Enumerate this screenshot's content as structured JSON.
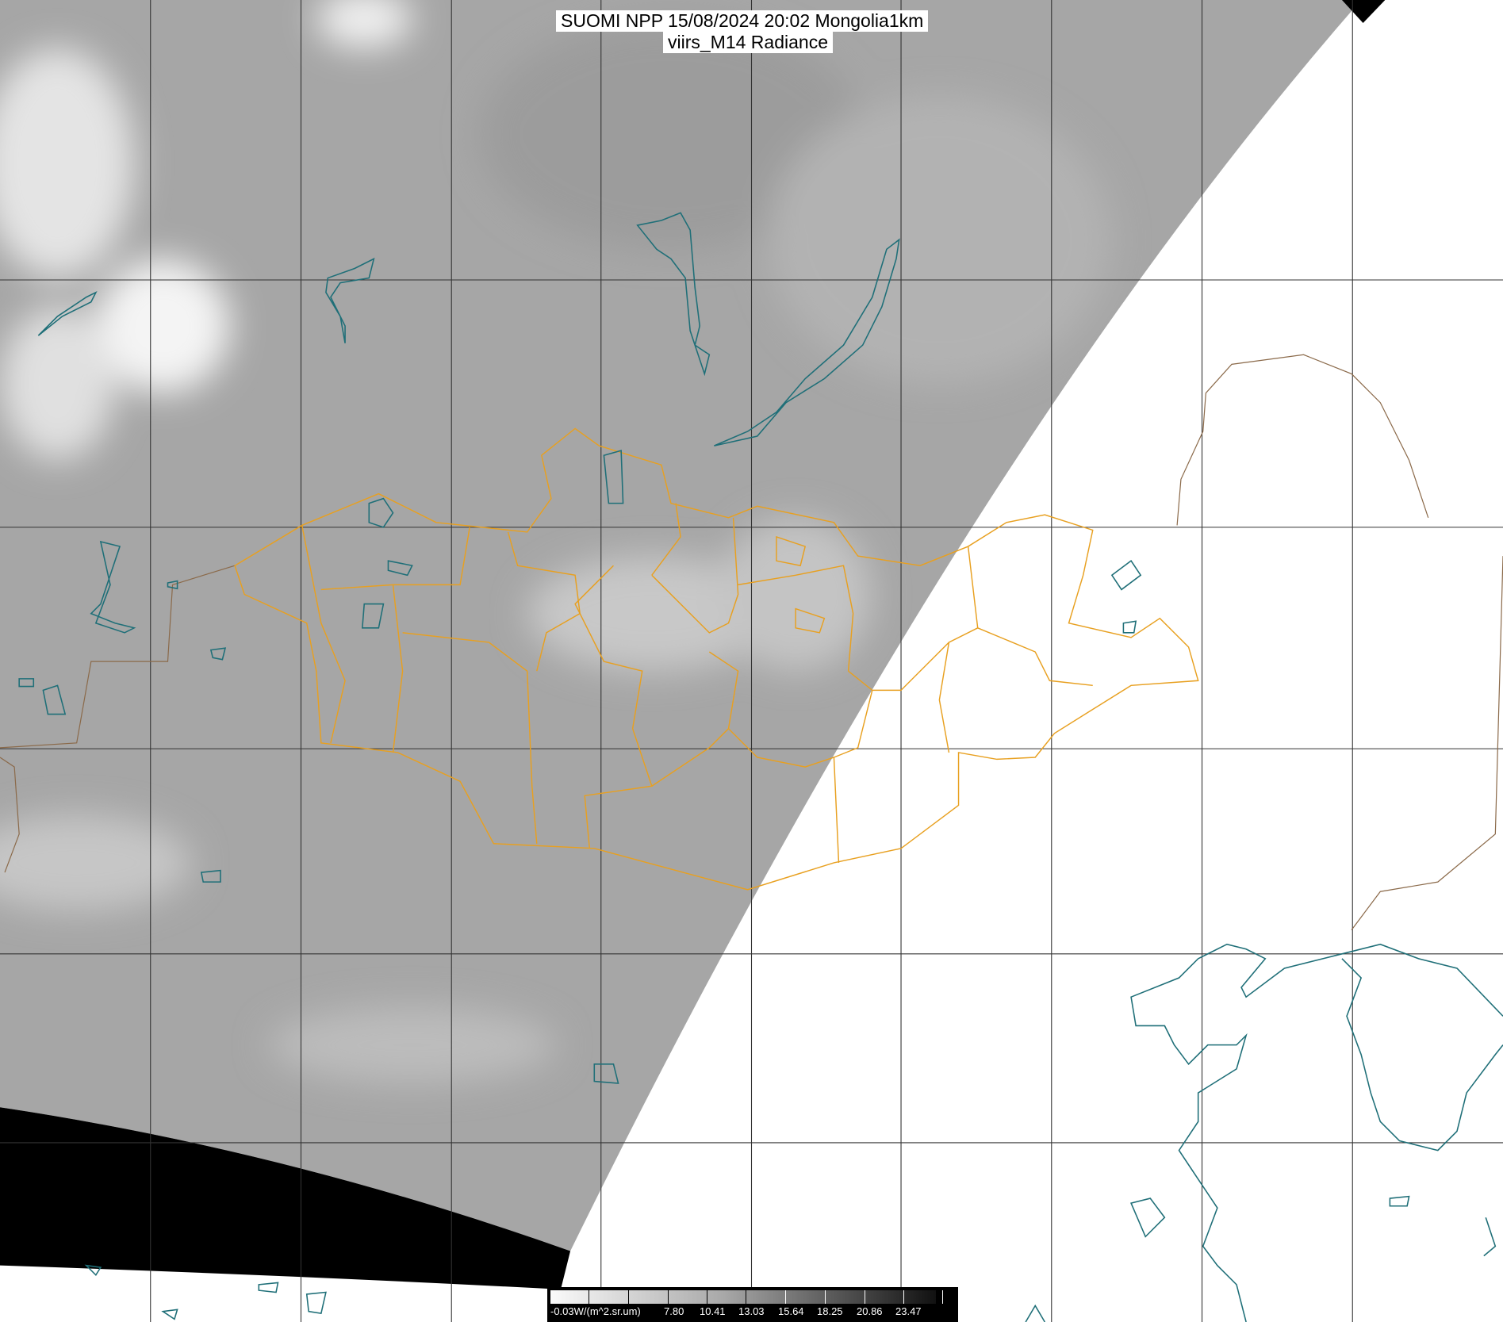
{
  "title": {
    "line1": "SUOMI NPP 15/08/2024 20:02 Mongolia1km",
    "line2": "viirs_M14 Radiance"
  },
  "colorbar": {
    "unit_label": "-0.03W/(m^2.sr.um)",
    "tick_labels": [
      "7.80",
      "10.41",
      "13.03",
      "15.64",
      "18.25",
      "20.86",
      "23.47"
    ],
    "min_color": "#fafafa",
    "max_color": "#111111"
  },
  "colors": {
    "country_border": "#8b6a4a",
    "province_border": "#e8a020",
    "coastline": "#1f6f78",
    "gridline": "#333333",
    "no_data": "#000000"
  }
}
